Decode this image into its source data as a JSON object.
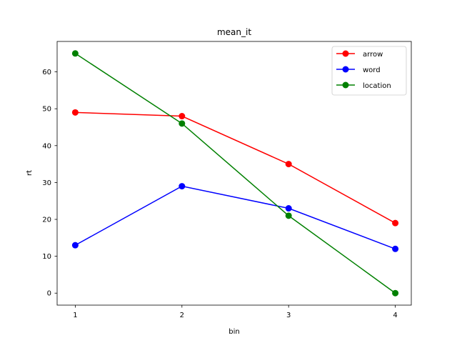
{
  "chart_data": {
    "type": "line",
    "title": "mean_it",
    "xlabel": "bin",
    "ylabel": "rt",
    "x": [
      1,
      2,
      3,
      4
    ],
    "xticks": [
      "1",
      "2",
      "3",
      "4"
    ],
    "yticks": [
      "0",
      "10",
      "20",
      "30",
      "40",
      "50",
      "60"
    ],
    "xlim": [
      0.83,
      4.15
    ],
    "ylim": [
      -3.25,
      68.25
    ],
    "grid": false,
    "legend_position": "top-right",
    "series": [
      {
        "name": "arrow",
        "values": [
          49,
          48,
          35,
          19
        ],
        "color": "#ff0000",
        "marker": "circle"
      },
      {
        "name": "word",
        "values": [
          13,
          29,
          23,
          12
        ],
        "color": "#0000ff",
        "marker": "circle"
      },
      {
        "name": "location",
        "values": [
          65,
          46,
          21,
          0
        ],
        "color": "#008000",
        "marker": "circle"
      }
    ]
  }
}
